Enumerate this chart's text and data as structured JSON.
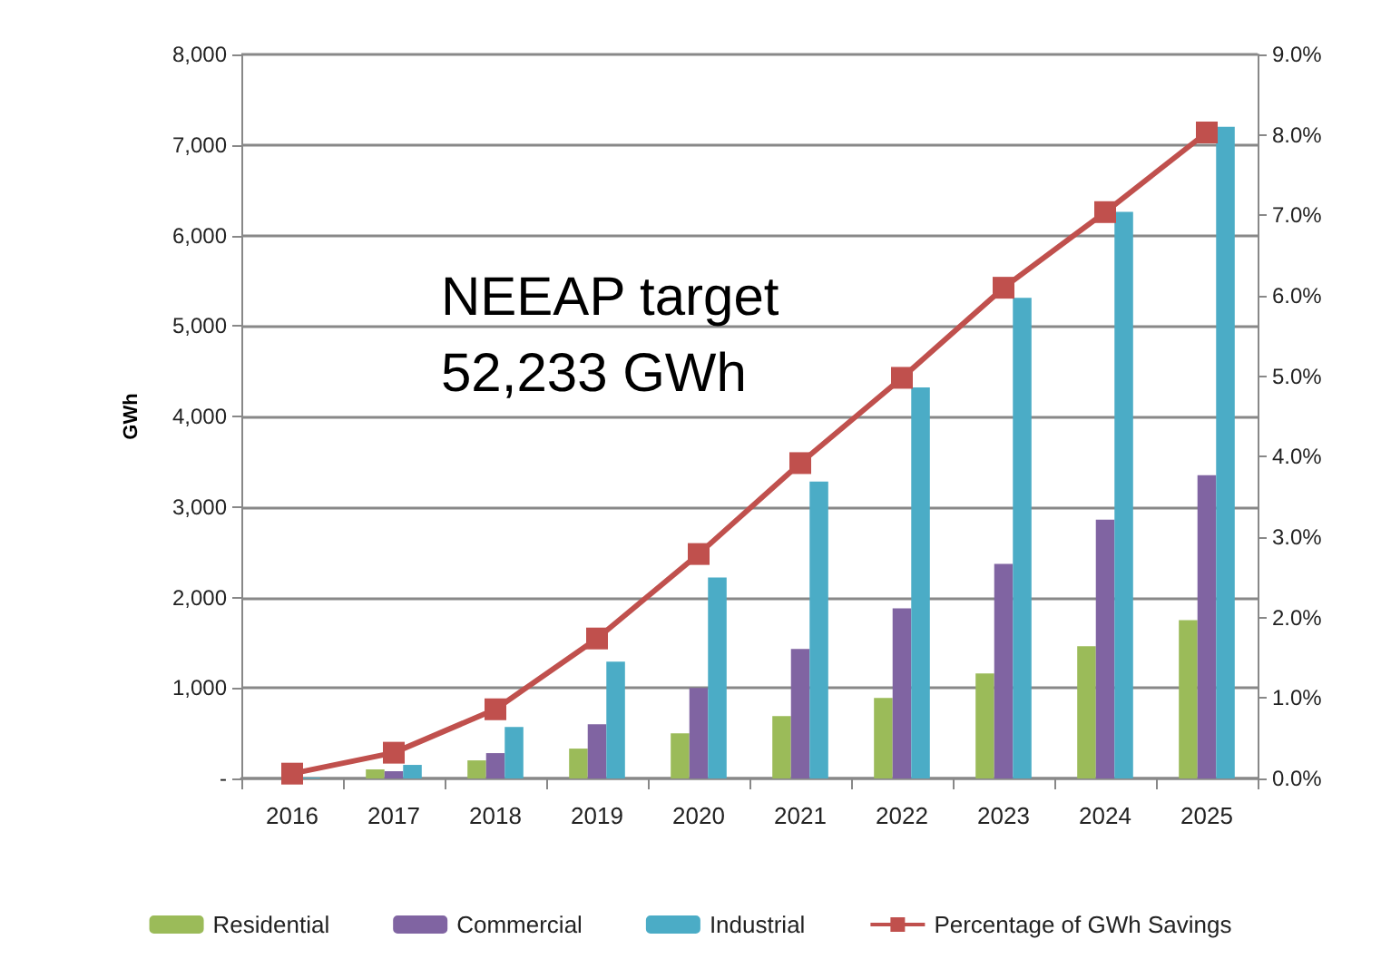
{
  "chart_data": {
    "type": "bar",
    "ylabel": "GWh",
    "categories": [
      "2016",
      "2017",
      "2018",
      "2019",
      "2020",
      "2021",
      "2022",
      "2023",
      "2024",
      "2025"
    ],
    "series": [
      {
        "name": "Residential",
        "color": "#9bbb59",
        "values": [
          null,
          100,
          200,
          330,
          500,
          690,
          890,
          1160,
          1460,
          1750
        ]
      },
      {
        "name": "Commercial",
        "color": "#8064a2",
        "values": [
          null,
          80,
          280,
          600,
          1000,
          1430,
          1880,
          2370,
          2860,
          3350
        ]
      },
      {
        "name": "Industrial",
        "color": "#4bacc6",
        "values": [
          10,
          150,
          570,
          1290,
          2220,
          3280,
          4320,
          5310,
          6260,
          7200
        ]
      },
      {
        "name": "Percentage of GWh Savings",
        "type": "line",
        "axis": "y2",
        "color": "#c0504d",
        "marker": "square",
        "values": [
          0.06,
          0.32,
          0.86,
          1.74,
          2.79,
          3.92,
          4.98,
          6.1,
          7.04,
          8.03
        ]
      }
    ],
    "ylim": [
      0,
      8000
    ],
    "yticks": [
      {
        "value": 0,
        "label": "-"
      },
      {
        "value": 1000,
        "label": "1,000"
      },
      {
        "value": 2000,
        "label": "2,000"
      },
      {
        "value": 3000,
        "label": "3,000"
      },
      {
        "value": 4000,
        "label": "4,000"
      },
      {
        "value": 5000,
        "label": "5,000"
      },
      {
        "value": 6000,
        "label": "6,000"
      },
      {
        "value": 7000,
        "label": "7,000"
      },
      {
        "value": 8000,
        "label": "8,000"
      }
    ],
    "y2lim": [
      0,
      9
    ],
    "y2ticks": [
      {
        "value": 0,
        "label": "0.0%"
      },
      {
        "value": 1,
        "label": "1.0%"
      },
      {
        "value": 2,
        "label": "2.0%"
      },
      {
        "value": 3,
        "label": "3.0%"
      },
      {
        "value": 4,
        "label": "4.0%"
      },
      {
        "value": 5,
        "label": "5.0%"
      },
      {
        "value": 6,
        "label": "6.0%"
      },
      {
        "value": 7,
        "label": "7.0%"
      },
      {
        "value": 8,
        "label": "8.0%"
      },
      {
        "value": 9,
        "label": "9.0%"
      }
    ],
    "annotations": [
      "NEEAP target\n52,233 GWh"
    ],
    "grid": "y",
    "legend": "bottom"
  }
}
